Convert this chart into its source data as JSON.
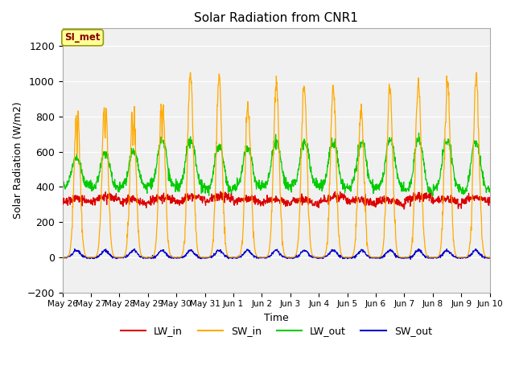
{
  "title": "Solar Radiation from CNR1",
  "xlabel": "Time",
  "ylabel": "Solar Radiation (W/m2)",
  "ylim": [
    -200,
    1300
  ],
  "yticks": [
    -200,
    0,
    200,
    400,
    600,
    800,
    1000,
    1200
  ],
  "n_days": 15,
  "pts_per_day": 96,
  "colors": {
    "LW_in": "#dd0000",
    "SW_in": "#ffaa00",
    "LW_out": "#00cc00",
    "SW_out": "#0000cc"
  },
  "background_color": "#e8e8e8",
  "plot_bg_color": "#f0f0f0",
  "annotation_text": "SI_met",
  "annotation_box_facecolor": "#ffff99",
  "annotation_box_edgecolor": "#999900",
  "annotation_text_color": "#880000",
  "tick_labels": [
    "May 26",
    "May 27",
    "May 28",
    "May 29",
    "May 30",
    "May 31",
    "Jun 1",
    "Jun 2",
    "Jun 3",
    "Jun 4",
    "Jun 5",
    "Jun 6",
    "Jun 7",
    "Jun 8",
    "Jun 9",
    "Jun 10"
  ],
  "SW_peaks": [
    880,
    930,
    880,
    950,
    1040,
    1030,
    850,
    990,
    960,
    960,
    840,
    960,
    1000,
    1000,
    1020
  ],
  "LW_out_peaks": [
    560,
    580,
    590,
    650,
    655,
    620,
    600,
    640,
    640,
    640,
    635,
    655,
    660,
    650,
    640
  ],
  "LW_in_base": 310,
  "grid_color": "white",
  "linewidth": 0.9
}
